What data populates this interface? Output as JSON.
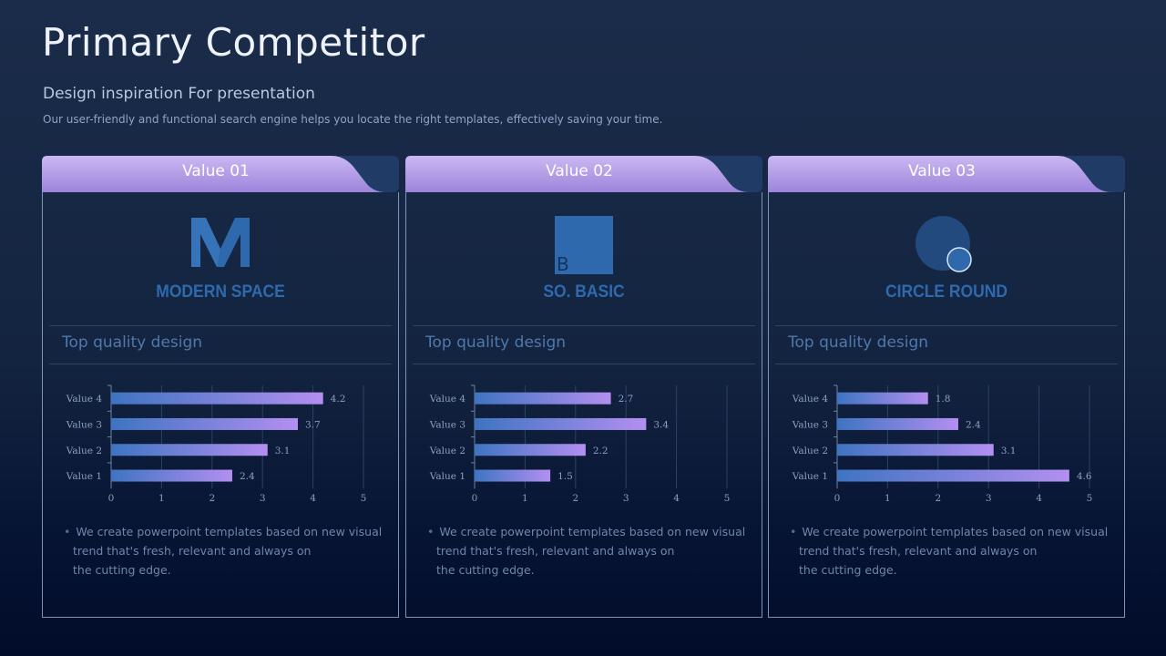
{
  "page": {
    "title": "Primary Competitor",
    "subtitle": "Design inspiration For presentation",
    "description": "Our user-friendly and functional search engine helps you locate the right templates, effectively saving your time."
  },
  "colors": {
    "header_gradient": [
      "#cbb8f2",
      "#9c84db"
    ],
    "bar_gradient": [
      "#3e74c2",
      "#b38ff0"
    ],
    "brand_blue": "#2f69ad"
  },
  "cards": [
    {
      "title": "Value 01",
      "logo_icon": "m-letter-logo-icon",
      "brand": "MODERN SPACE",
      "section_title": "Top quality design",
      "note_lines": [
        "We create powerpoint templates based on new visual",
        "trend that's fresh, relevant and always on",
        "the cutting edge."
      ]
    },
    {
      "title": "Value 02",
      "logo_icon": "square-b-logo-icon",
      "logo_letter": "B",
      "brand": "SO. BASIC",
      "section_title": "Top quality design",
      "note_lines": [
        "We create powerpoint templates based on new visual",
        "trend that's fresh, relevant and always on",
        "the cutting edge."
      ]
    },
    {
      "title": "Value 03",
      "logo_icon": "circle-logo-icon",
      "brand": "CIRCLE ROUND",
      "section_title": "Top quality design",
      "note_lines": [
        "We create powerpoint templates based on new visual",
        "trend that's fresh, relevant and always on",
        "the cutting edge."
      ]
    }
  ],
  "chart_data": [
    {
      "type": "bar",
      "orientation": "horizontal",
      "categories": [
        "Value 4",
        "Value 3",
        "Value 2",
        "Value 1"
      ],
      "values": [
        4.2,
        3.7,
        3.1,
        2.4
      ],
      "labels": [
        "4.2",
        "3.7",
        "3.1",
        "2.4"
      ],
      "xticks": [
        "0",
        "1",
        "2",
        "3",
        "4",
        "5"
      ],
      "xlim": [
        0,
        5
      ],
      "grid": true,
      "legend": "none"
    },
    {
      "type": "bar",
      "orientation": "horizontal",
      "categories": [
        "Value 4",
        "Value 3",
        "Value 2",
        "Value 1"
      ],
      "values": [
        2.7,
        3.4,
        2.2,
        1.5
      ],
      "labels": [
        "2.7",
        "3.4",
        "2.2",
        "1.5"
      ],
      "xticks": [
        "0",
        "1",
        "2",
        "3",
        "4",
        "5"
      ],
      "xlim": [
        0,
        5
      ],
      "grid": true,
      "legend": "none"
    },
    {
      "type": "bar",
      "orientation": "horizontal",
      "categories": [
        "Value 4",
        "Value 3",
        "Value 2",
        "Value 1"
      ],
      "values": [
        1.8,
        2.4,
        3.1,
        4.6
      ],
      "labels": [
        "1.8",
        "2.4",
        "3.1",
        "4.6"
      ],
      "xticks": [
        "0",
        "1",
        "2",
        "3",
        "4",
        "5"
      ],
      "xlim": [
        0,
        5
      ],
      "grid": true,
      "legend": "none"
    }
  ]
}
